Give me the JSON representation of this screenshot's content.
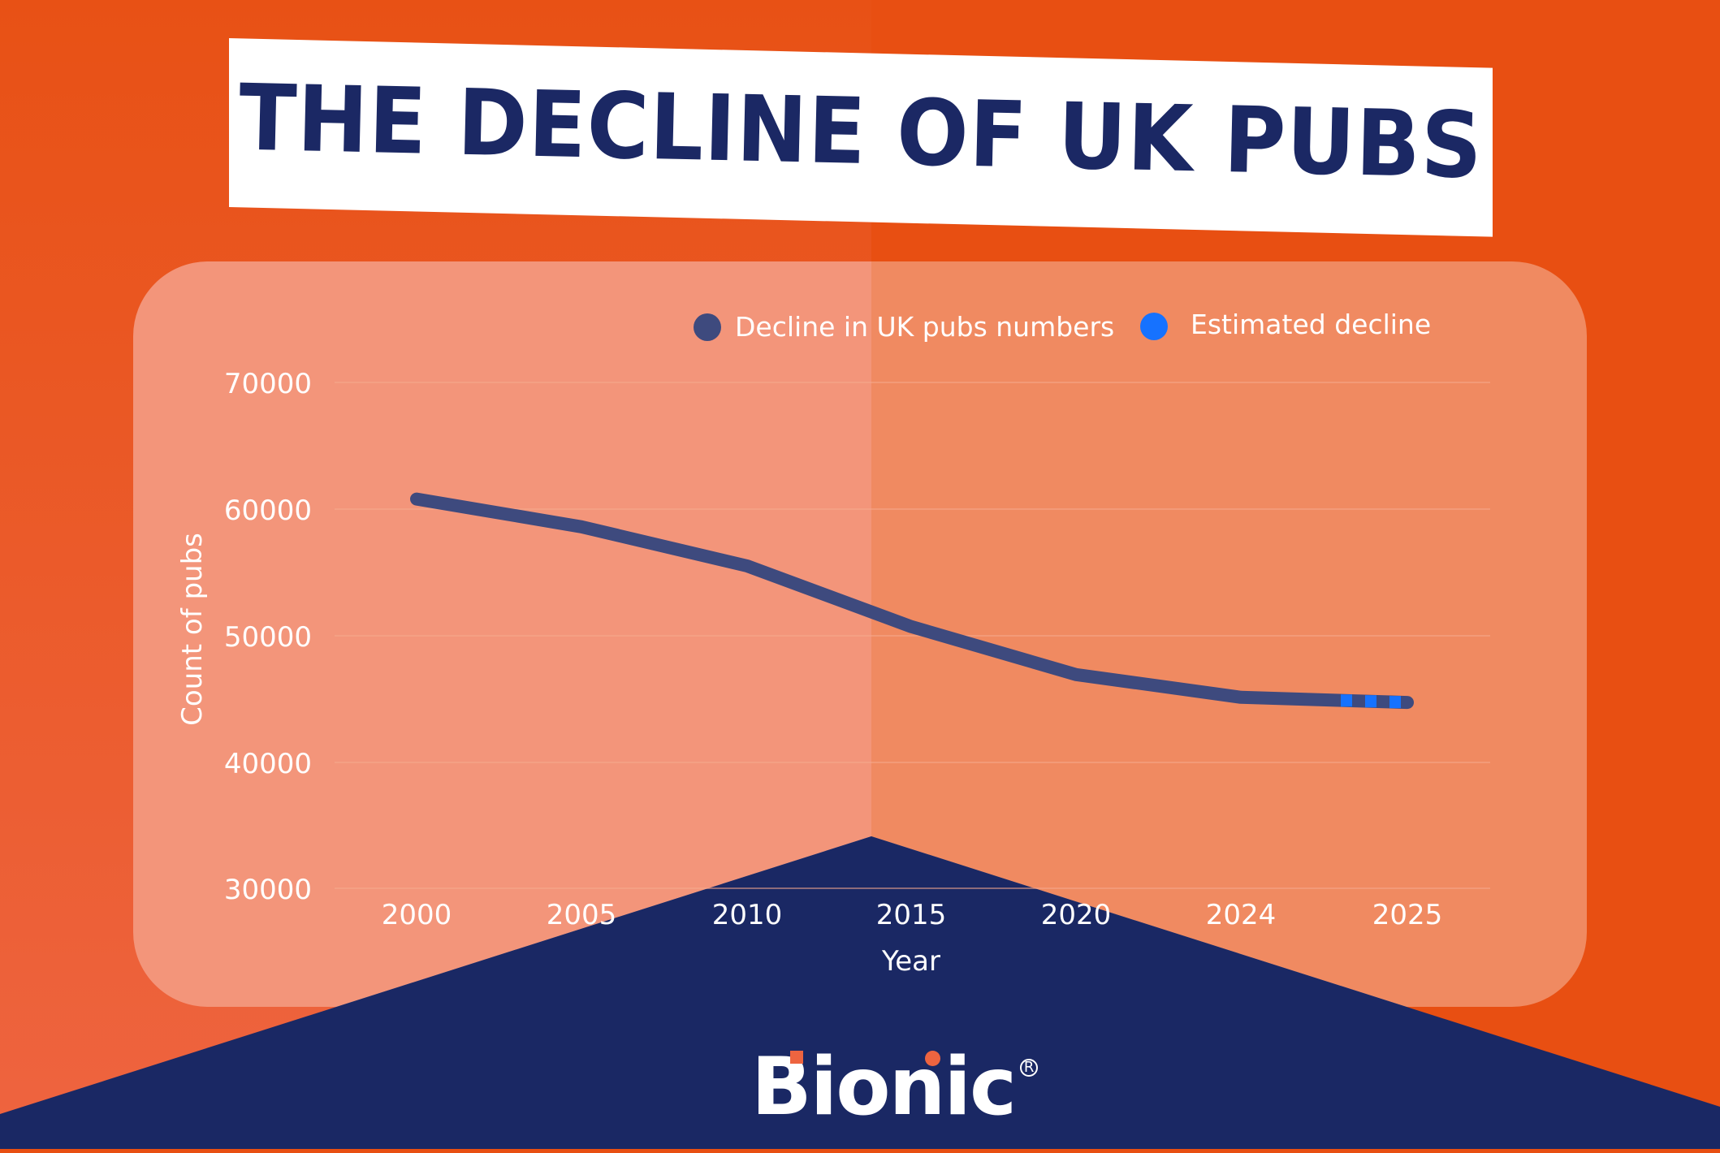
{
  "header": {
    "title": "THE DECLINE OF UK PUBS"
  },
  "colors": {
    "bg_left": "#EE623D",
    "bg_right": "#E84F12",
    "card_left": "#F3957A",
    "card_right": "#F08A61",
    "navy": "#1A2864",
    "navy_on_card": "#687399",
    "line": "#3E4A7E",
    "estimate": "#1672FF",
    "accent": "#EE6440"
  },
  "legend": {
    "items": [
      {
        "label": "Decline in UK pubs numbers",
        "color": "#3E4A7E"
      },
      {
        "label": "Estimated decline",
        "color": "#1672FF"
      }
    ]
  },
  "axes": {
    "ylabel": "Count of pubs",
    "xlabel": "Year",
    "yticks": [
      "70000",
      "60000",
      "50000",
      "40000",
      "30000"
    ],
    "xticks": [
      "2000",
      "2005",
      "2010",
      "2015",
      "2020",
      "2024",
      "2025"
    ]
  },
  "brand": {
    "name": "Bionic",
    "registered": "R"
  },
  "chart_data": {
    "type": "line",
    "title": "THE DECLINE OF UK PUBS",
    "xlabel": "Year",
    "ylabel": "Count of pubs",
    "categories": [
      "2000",
      "2005",
      "2010",
      "2015",
      "2020",
      "2024",
      "2025"
    ],
    "series": [
      {
        "name": "Decline in UK pubs numbers",
        "values": [
          60800,
          58600,
          55500,
          50700,
          46900,
          45100,
          44700
        ],
        "style": "solid",
        "color": "#3E4A7E"
      },
      {
        "name": "Estimated decline",
        "values": [
          null,
          null,
          null,
          null,
          null,
          45100,
          44700
        ],
        "style": "dotted",
        "color": "#1672FF"
      }
    ],
    "ylim": [
      30000,
      70000
    ],
    "yticks": [
      30000,
      40000,
      50000,
      60000,
      70000
    ],
    "grid": true,
    "legend_position": "top-right"
  }
}
